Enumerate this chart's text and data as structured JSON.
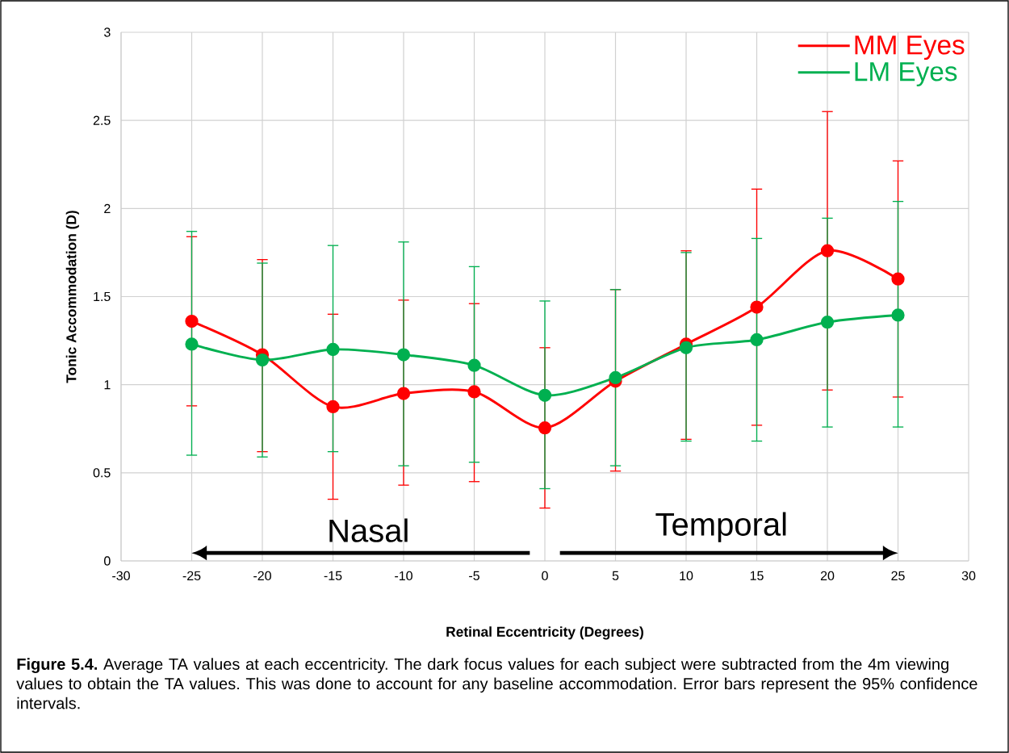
{
  "chart_data": {
    "type": "line",
    "xlabel": "Retinal Eccentricity (Degrees)",
    "ylabel": "Tonic Accommodation (D)",
    "x": [
      -25,
      -20,
      -15,
      -10,
      -5,
      0,
      5,
      10,
      15,
      20,
      25
    ],
    "series": [
      {
        "name": "MM Eyes",
        "color": "#ff0000",
        "values": [
          1.36,
          1.17,
          0.875,
          0.95,
          0.96,
          0.755,
          1.02,
          1.23,
          1.44,
          1.76,
          1.6
        ],
        "errors": [
          [
            0.88,
            1.84
          ],
          [
            0.62,
            1.71
          ],
          [
            0.35,
            1.4
          ],
          [
            0.43,
            1.48
          ],
          [
            0.45,
            1.46
          ],
          [
            0.3,
            1.21
          ],
          [
            0.51,
            1.54
          ],
          [
            0.69,
            1.76
          ],
          [
            0.77,
            2.11
          ],
          [
            0.97,
            2.55
          ],
          [
            0.93,
            2.27
          ]
        ]
      },
      {
        "name": "LM Eyes",
        "color": "#00b050",
        "values": [
          1.23,
          1.14,
          1.2,
          1.17,
          1.11,
          0.94,
          1.04,
          1.21,
          1.255,
          1.355,
          1.395
        ],
        "errors": [
          [
            0.6,
            1.87
          ],
          [
            0.59,
            1.69
          ],
          [
            0.62,
            1.79
          ],
          [
            0.54,
            1.81
          ],
          [
            0.56,
            1.67
          ],
          [
            0.41,
            1.475
          ],
          [
            0.54,
            1.54
          ],
          [
            0.68,
            1.75
          ],
          [
            0.68,
            1.83
          ],
          [
            0.76,
            1.945
          ],
          [
            0.76,
            2.04
          ]
        ]
      }
    ],
    "xlim": [
      -30,
      30
    ],
    "xticks": [
      -30,
      -25,
      -20,
      -15,
      -10,
      -5,
      0,
      5,
      10,
      15,
      20,
      25,
      30
    ],
    "ylim": [
      0,
      3
    ],
    "yticks": [
      0,
      0.5,
      1,
      1.5,
      2,
      2.5,
      3
    ],
    "grid": true,
    "legend": "top right",
    "marker": "circle",
    "line_style": "solid",
    "annotations": [
      "Nasal",
      "Temporal",
      "**Figure 5.4.** Average TA values at each eccentricity. The dark focus values for each subject were subtracted from the 4m viewing values to obtain the TA values. This was done to account for any baseline accommodation. Error bars represent the 95% confidence intervals."
    ]
  }
}
